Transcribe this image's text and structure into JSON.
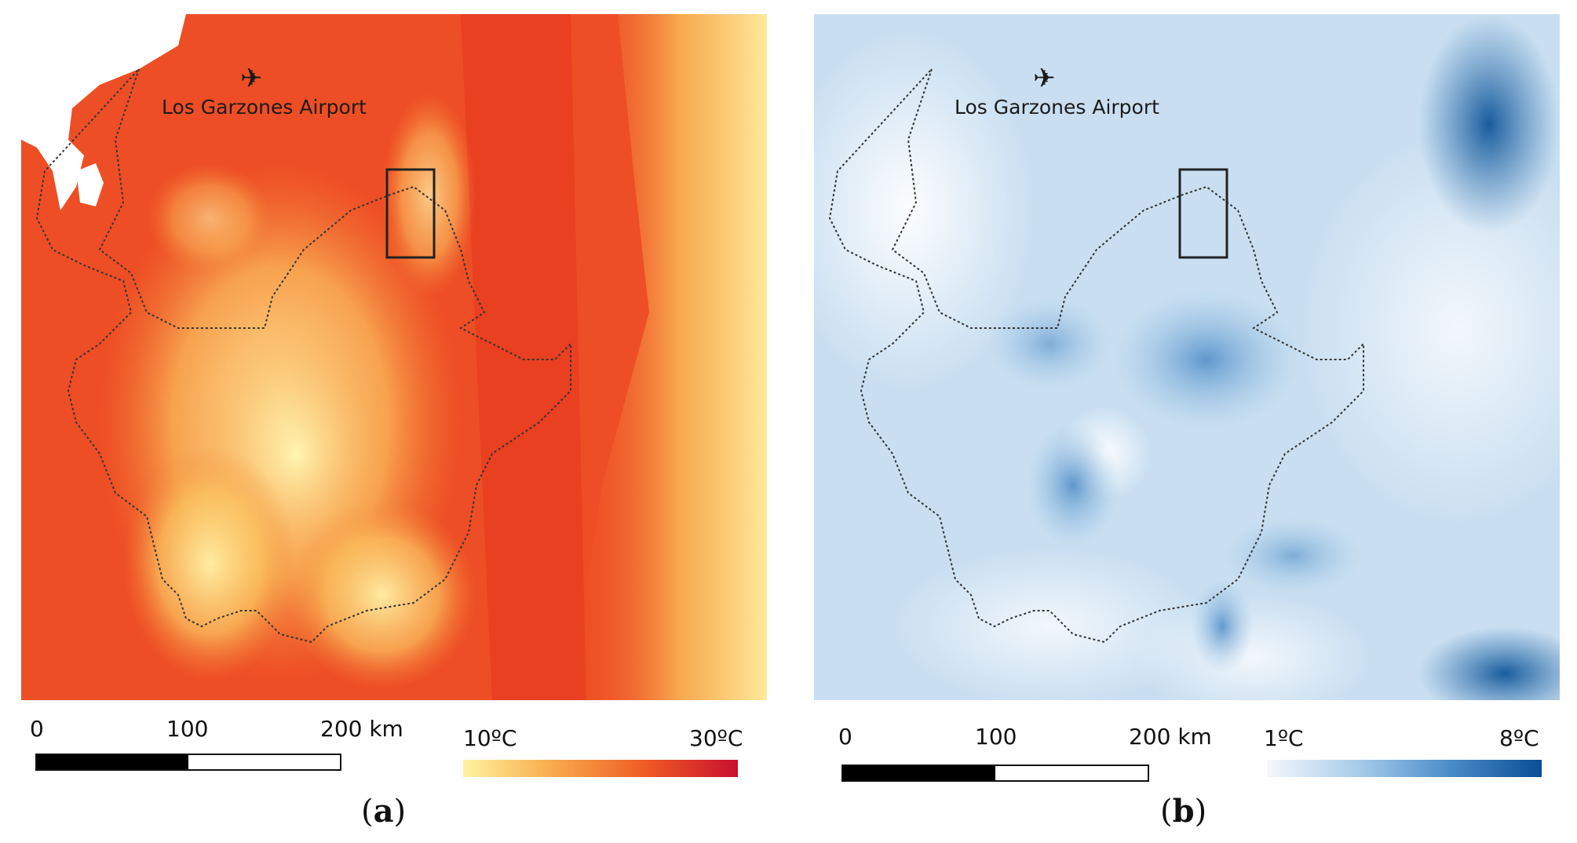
{
  "panels": [
    {
      "id": "a",
      "airport_label": "Los Garzones Airport",
      "airport_icon": "airplane-icon",
      "scale": {
        "ticks": [
          "0",
          "100",
          "200 km"
        ]
      },
      "legend": {
        "min_label": "10ºC",
        "max_label": "30ºC",
        "colors": [
          "#fff3a0",
          "#f7a94a",
          "#ef5a25",
          "#c8102e"
        ]
      },
      "letter": {
        "open": "(",
        "letter": "a",
        "close": ")"
      },
      "palette": {
        "base": "#ee4a24",
        "highland": "#fbd36a",
        "peak": "#fff6b0"
      }
    },
    {
      "id": "b",
      "airport_label": "Los Garzones Airport",
      "airport_icon": "airplane-icon",
      "scale": {
        "ticks": [
          "0",
          "100",
          "200 km"
        ]
      },
      "legend": {
        "min_label": "1ºC",
        "max_label": "8ºC",
        "colors": [
          "#f4f8fd",
          "#a9cbea",
          "#4a8cc8",
          "#0a4e94"
        ]
      },
      "letter": {
        "open": "(",
        "letter": "b",
        "close": ")"
      },
      "palette": {
        "base": "#cde2f3",
        "light": "#f3f8fd",
        "dark": "#2d6fae"
      }
    }
  ]
}
